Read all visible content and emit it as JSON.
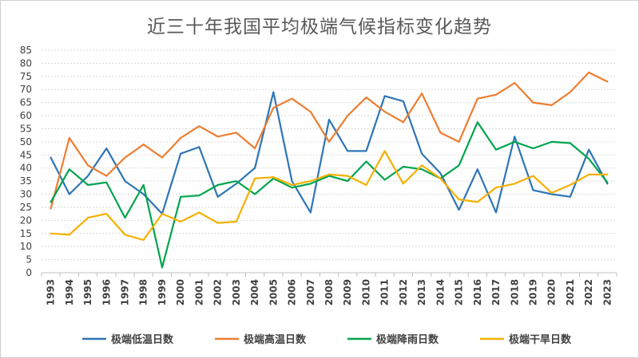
{
  "chart_data": {
    "type": "line",
    "title": "近三十年我国平均极端气候指标变化趋势",
    "xlabel": "",
    "ylabel": "",
    "ylim": [
      0,
      85
    ],
    "yticks": [
      0,
      5,
      10,
      15,
      20,
      25,
      30,
      35,
      40,
      45,
      50,
      55,
      60,
      65,
      70,
      75,
      80,
      85
    ],
    "grid": true,
    "legend_position": "bottom",
    "categories": [
      "1993",
      "1994",
      "1995",
      "1996",
      "1997",
      "1998",
      "1999",
      "2000",
      "2001",
      "2002",
      "2003",
      "2004",
      "2005",
      "2006",
      "2007",
      "2008",
      "2009",
      "2010",
      "2011",
      "2012",
      "2013",
      "2014",
      "2015",
      "2016",
      "2017",
      "2018",
      "2019",
      "2020",
      "2021",
      "2022",
      "2023"
    ],
    "series": [
      {
        "name": "极端低温日数",
        "color": "#2e75b6",
        "values": [
          44,
          30,
          37,
          47.5,
          35,
          30,
          22.5,
          45.5,
          48,
          29,
          34,
          40,
          69,
          35,
          23,
          58.5,
          46.5,
          46.5,
          67.5,
          65.5,
          45.5,
          38,
          24,
          39.5,
          23,
          52,
          31.5,
          30,
          29,
          47,
          34
        ]
      },
      {
        "name": "极端高温日数",
        "color": "#ed7d31",
        "values": [
          24.5,
          51.5,
          41,
          37,
          44,
          49,
          44,
          51.5,
          56,
          52,
          53.5,
          47.5,
          63,
          66.5,
          61.5,
          50,
          60,
          67,
          61.5,
          57.5,
          68.5,
          53.5,
          50,
          66.5,
          68,
          72.5,
          65,
          64,
          69,
          76.5,
          73
        ]
      },
      {
        "name": "极端降雨日数",
        "color": "#00a44e",
        "values": [
          27,
          39.5,
          33.5,
          34.5,
          21,
          33.5,
          2,
          29,
          29.5,
          33.5,
          35,
          30,
          36,
          32.5,
          34,
          37,
          35,
          42.5,
          35.5,
          40.5,
          39.5,
          36,
          41,
          57.5,
          47,
          50,
          47.5,
          50,
          49.5,
          43.5,
          34.5
        ]
      },
      {
        "name": "极端干旱日数",
        "color": "#f5b000",
        "values": [
          15,
          14.5,
          21,
          22.5,
          14.5,
          12.5,
          22.5,
          19.5,
          23,
          19,
          19.5,
          36,
          36.5,
          33.5,
          35,
          37.5,
          37,
          33.5,
          46.5,
          34,
          41,
          36,
          28,
          27,
          32.5,
          34,
          37,
          30.5,
          33.5,
          37.5,
          37.5
        ]
      }
    ]
  }
}
